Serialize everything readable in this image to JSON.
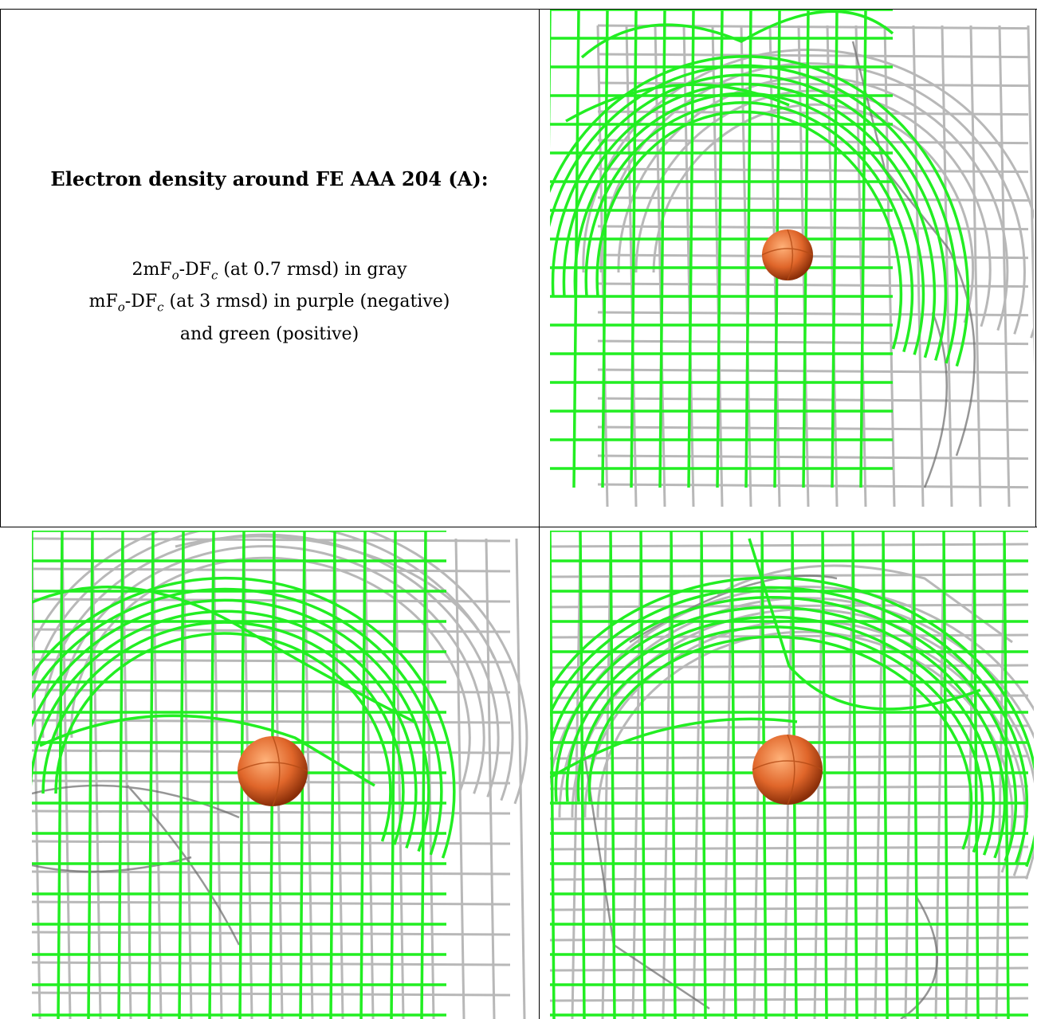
{
  "caption": {
    "title": "Electron density around FE AAA 204 (A):",
    "line1": {
      "prefix": "2mF",
      "sub1": "o",
      "mid": "-DF",
      "sub2": "c",
      "suffix": " (at 0.7 rmsd) in gray"
    },
    "line2": {
      "prefix": "mF",
      "sub1": "o",
      "mid": "-DF",
      "sub2": "c",
      "suffix": " (at 3 rmsd) in purple (negative)"
    },
    "line3": "and green (positive)"
  },
  "colors": {
    "gray_mesh": "#b8b8b8",
    "dark_mesh": "#6a6a6a",
    "green_mesh": "#22ee22",
    "atom": "#e0662a"
  },
  "panels": [
    {
      "name": "view-top-right"
    },
    {
      "name": "view-bottom-left"
    },
    {
      "name": "view-bottom-right"
    }
  ]
}
